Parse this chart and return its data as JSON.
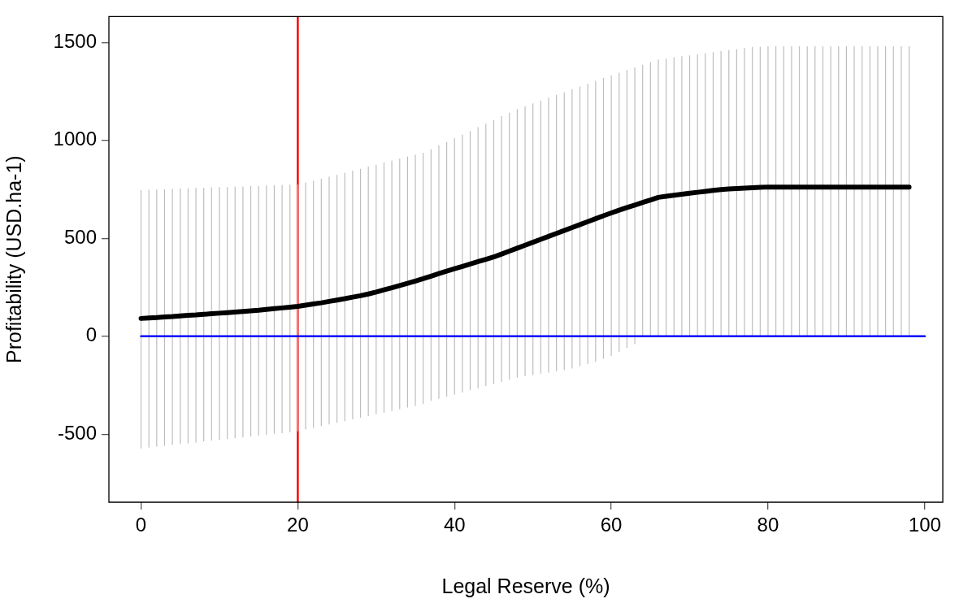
{
  "chart_data": {
    "type": "line",
    "xlabel": "Legal Reserve (%)",
    "ylabel": "Profitability (USD.ha-1)",
    "xlim": [
      -4.1,
      102.3
    ],
    "xticks": [
      0,
      20,
      40,
      60,
      80,
      100
    ],
    "ylim": [
      -847,
      1632
    ],
    "yticks": [
      -500,
      0,
      500,
      1000,
      1500
    ],
    "grid": false,
    "legend": false,
    "marker": "none",
    "line_style": "solid",
    "ref_lines": [
      {
        "axis": "x",
        "value": 20,
        "color": "#ff0000"
      }
    ],
    "series": [
      {
        "color": "#000000",
        "x": [
          0,
          1,
          2,
          3,
          4,
          5,
          6,
          7,
          8,
          9,
          10,
          11,
          12,
          13,
          14,
          15,
          16,
          17,
          18,
          19,
          20,
          21,
          22,
          23,
          24,
          25,
          26,
          27,
          28,
          29,
          30,
          31,
          32,
          33,
          34,
          35,
          36,
          37,
          38,
          39,
          40,
          41,
          42,
          43,
          44,
          45,
          46,
          47,
          48,
          49,
          50,
          51,
          52,
          53,
          54,
          55,
          56,
          57,
          58,
          59,
          60,
          61,
          62,
          63,
          64,
          65,
          66,
          67,
          68,
          69,
          70,
          71,
          72,
          73,
          74,
          75,
          76,
          77,
          78,
          79,
          80,
          81,
          82,
          83,
          84,
          85,
          86,
          87,
          88,
          89,
          90,
          91,
          92,
          93,
          94,
          95,
          96,
          97,
          98
        ],
        "values": [
          91,
          94,
          96,
          99,
          101,
          104,
          107,
          109,
          112,
          115,
          118,
          121,
          124,
          127,
          130,
          133,
          137,
          141,
          145,
          149,
          153,
          159,
          165,
          171,
          178,
          185,
          192,
          200,
          207,
          216,
          226,
          237,
          248,
          259,
          270,
          282,
          294,
          307,
          320,
          333,
          345,
          357,
          369,
          381,
          393,
          405,
          420,
          435,
          450,
          465,
          480,
          495,
          510,
          525,
          540,
          555,
          570,
          585,
          600,
          615,
          630,
          644,
          657,
          670,
          683,
          696,
          709,
          715,
          720,
          725,
          730,
          735,
          740,
          745,
          749,
          752,
          754,
          756,
          758,
          760,
          762,
          762,
          762,
          762,
          762,
          762,
          762,
          762,
          762,
          762,
          762,
          762,
          762,
          762,
          762,
          762,
          762,
          762,
          762
        ],
        "errors": [
          [
            -572,
            746
          ],
          [
            -568,
            748
          ],
          [
            -563,
            749
          ],
          [
            -559,
            751
          ],
          [
            -555,
            752
          ],
          [
            -550,
            754
          ],
          [
            -546,
            755
          ],
          [
            -542,
            757
          ],
          [
            -537,
            758
          ],
          [
            -533,
            760
          ],
          [
            -529,
            761
          ],
          [
            -524,
            762
          ],
          [
            -520,
            764
          ],
          [
            -516,
            765
          ],
          [
            -511,
            767
          ],
          [
            -507,
            768
          ],
          [
            -503,
            770
          ],
          [
            -498,
            771
          ],
          [
            -494,
            773
          ],
          [
            -490,
            774
          ],
          [
            -485,
            775
          ],
          [
            -476,
            784
          ],
          [
            -468,
            794
          ],
          [
            -459,
            804
          ],
          [
            -450,
            814
          ],
          [
            -442,
            824
          ],
          [
            -433,
            834
          ],
          [
            -424,
            845
          ],
          [
            -416,
            855
          ],
          [
            -407,
            866
          ],
          [
            -398,
            876
          ],
          [
            -390,
            887
          ],
          [
            -381,
            897
          ],
          [
            -372,
            907
          ],
          [
            -364,
            917
          ],
          [
            -355,
            927
          ],
          [
            -346,
            937
          ],
          [
            -330,
            955
          ],
          [
            -319,
            974
          ],
          [
            -308,
            992
          ],
          [
            -297,
            1011
          ],
          [
            -287,
            1029
          ],
          [
            -276,
            1048
          ],
          [
            -265,
            1067
          ],
          [
            -254,
            1085
          ],
          [
            -243,
            1104
          ],
          [
            -233,
            1123
          ],
          [
            -222,
            1141
          ],
          [
            -211,
            1160
          ],
          [
            -204,
            1174
          ],
          [
            -198,
            1189
          ],
          [
            -191,
            1203
          ],
          [
            -185,
            1218
          ],
          [
            -178,
            1232
          ],
          [
            -172,
            1246
          ],
          [
            -165,
            1261
          ],
          [
            -153,
            1275
          ],
          [
            -141,
            1289
          ],
          [
            -130,
            1304
          ],
          [
            -115,
            1318
          ],
          [
            -100,
            1332
          ],
          [
            -80,
            1345
          ],
          [
            -60,
            1359
          ],
          [
            -40,
            1372
          ],
          [
            0,
            1386
          ],
          [
            0,
            1399
          ],
          [
            0,
            1413
          ],
          [
            0,
            1418
          ],
          [
            0,
            1424
          ],
          [
            0,
            1429
          ],
          [
            0,
            1434
          ],
          [
            0,
            1440
          ],
          [
            0,
            1445
          ],
          [
            0,
            1450
          ],
          [
            0,
            1456
          ],
          [
            0,
            1461
          ],
          [
            0,
            1466
          ],
          [
            0,
            1472
          ],
          [
            0,
            1477
          ],
          [
            0,
            1478
          ],
          [
            0,
            1480
          ],
          [
            0,
            1480
          ],
          [
            0,
            1480
          ],
          [
            0,
            1480
          ],
          [
            0,
            1480
          ],
          [
            0,
            1480
          ],
          [
            0,
            1480
          ],
          [
            0,
            1480
          ],
          [
            0,
            1480
          ],
          [
            0,
            1480
          ],
          [
            0,
            1480
          ],
          [
            0,
            1480
          ],
          [
            0,
            1480
          ],
          [
            0,
            1480
          ],
          [
            0,
            1480
          ],
          [
            0,
            1480
          ],
          [
            0,
            1480
          ],
          [
            0,
            1480
          ],
          [
            0,
            1480
          ]
        ]
      },
      {
        "color": "#0000ff",
        "x": [
          0,
          100
        ],
        "values": [
          0,
          0
        ]
      }
    ]
  }
}
